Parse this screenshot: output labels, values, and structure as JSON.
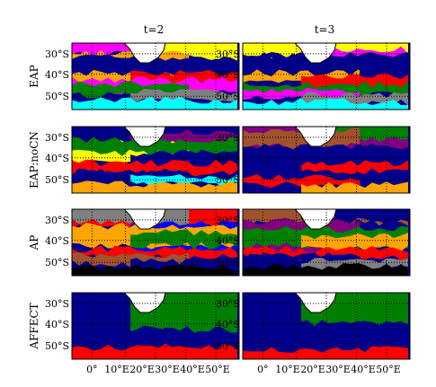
{
  "figure": {
    "column_titles": [
      "t=2",
      "t=3"
    ],
    "row_labels": [
      "EAP",
      "EAP:noCN",
      "AP",
      "AFFECT"
    ],
    "lat_ticks": [
      "30°S",
      "40°S",
      "50°S"
    ],
    "lon_ticks": [
      "0°",
      "10°E",
      "20°E",
      "30°E",
      "40°E",
      "50°E"
    ],
    "colors": {
      "yellow": "#ffff00",
      "magenta": "#ff00ff",
      "orange": "#ffa500",
      "navy": "#00008b",
      "red": "#ff0000",
      "green": "#008000",
      "gray": "#808080",
      "cyan": "#00ffff",
      "white": "#ffffff",
      "purple": "#800080",
      "brown": "#a0522d",
      "blue": "#0000ff",
      "black": "#000000"
    }
  }
}
